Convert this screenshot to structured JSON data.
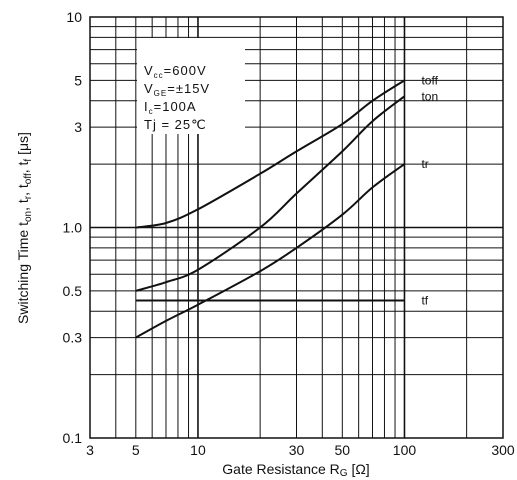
{
  "chart_data": {
    "type": "line",
    "title": "",
    "xlabel": "Gate Resistance R",
    "xlabel_sub": "G",
    "xlabel_unit": " [Ω]",
    "ylabel_parts": [
      {
        "t": "Switching Time t",
        "sub": false
      },
      {
        "t": "on",
        "sub": true
      },
      {
        "t": ", t",
        "sub": false
      },
      {
        "t": "r",
        "sub": true
      },
      {
        "t": ", t",
        "sub": false
      },
      {
        "t": "off",
        "sub": true
      },
      {
        "t": ", t",
        "sub": false
      },
      {
        "t": "f",
        "sub": true
      },
      {
        "t": " [μs]",
        "sub": false
      }
    ],
    "x_scale": "log",
    "y_scale": "log",
    "xlim": [
      3,
      300
    ],
    "ylim": [
      0.1,
      10
    ],
    "grid": true,
    "x_ticks": [
      {
        "v": 3,
        "label": "3"
      },
      {
        "v": 5,
        "label": "5"
      },
      {
        "v": 10,
        "label": "10"
      },
      {
        "v": 30,
        "label": "30"
      },
      {
        "v": 50,
        "label": "50"
      },
      {
        "v": 100,
        "label": "100"
      },
      {
        "v": 300,
        "label": "300"
      }
    ],
    "y_ticks": [
      {
        "v": 0.1,
        "label": "0.1"
      },
      {
        "v": 0.3,
        "label": "0.3"
      },
      {
        "v": 0.5,
        "label": "0.5"
      },
      {
        "v": 1,
        "label": "1.0"
      },
      {
        "v": 3,
        "label": "3"
      },
      {
        "v": 5,
        "label": "5"
      },
      {
        "v": 10,
        "label": "10"
      }
    ],
    "conditions": [
      {
        "main": "V",
        "sub": "cc",
        "rest": "=600V"
      },
      {
        "main": "V",
        "sub": "GE",
        "rest": "=±15V"
      },
      {
        "main": "I",
        "sub": "c",
        "rest": "=100A"
      },
      {
        "main": "Tj",
        "sub": "",
        "rest": " =  25℃"
      }
    ],
    "series": [
      {
        "name": "toff",
        "x": [
          5,
          7,
          10,
          20,
          30,
          50,
          70,
          100
        ],
        "y": [
          1.0,
          1.05,
          1.22,
          1.8,
          2.3,
          3.1,
          4.0,
          5.0
        ]
      },
      {
        "name": "ton",
        "x": [
          5,
          7,
          10,
          20,
          30,
          50,
          70,
          100
        ],
        "y": [
          0.5,
          0.55,
          0.63,
          1.0,
          1.45,
          2.3,
          3.2,
          4.2
        ]
      },
      {
        "name": "tr",
        "x": [
          5,
          7,
          10,
          20,
          30,
          50,
          70,
          100
        ],
        "y": [
          0.3,
          0.36,
          0.43,
          0.62,
          0.8,
          1.15,
          1.55,
          2.0
        ]
      },
      {
        "name": "tf",
        "x": [
          5,
          100
        ],
        "y": [
          0.45,
          0.45
        ]
      }
    ]
  }
}
